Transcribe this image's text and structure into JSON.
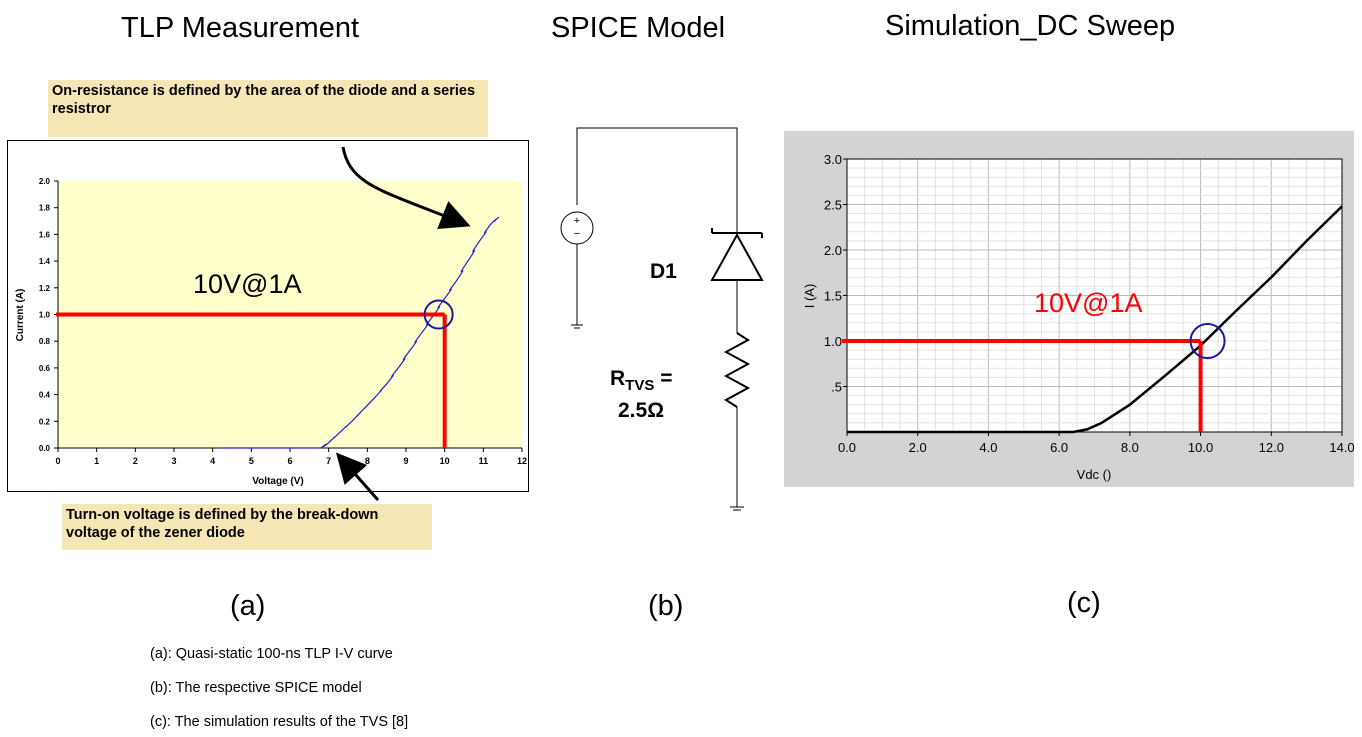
{
  "headings": {
    "tlp": "TLP Measurement",
    "spice": "SPICE Model",
    "sim": "Simulation_DC Sweep"
  },
  "notes": {
    "on_resistance": "On-resistance is defined by the area of the diode and a series resistror",
    "turn_on": "Turn-on voltage is defined by the break-down voltage of the zener diode"
  },
  "panel_labels": {
    "a": "(a)",
    "b": "(b)",
    "c": "(c)"
  },
  "captions": [
    "(a):  Quasi-static 100-ns TLP I-V curve",
    "(b):  The respective SPICE model",
    "(c):  The simulation results of the TVS [8]"
  ],
  "schematic": {
    "diode_label": "D1",
    "resistor_label_main": "R",
    "resistor_label_sub": "TVS",
    "resistor_label_eq": " =",
    "resistor_value": "2.5Ω",
    "source_symbol": "+ −"
  },
  "colors": {
    "note_bg": "#f5e6b6",
    "plot_bg_a": "#ffffcc",
    "curve_a": "#2222cc",
    "marker": "#ff0000",
    "circle": "#1a1a99",
    "panel_bg_c": "#d3d3d3"
  },
  "chart_data": [
    {
      "type": "line",
      "xlabel": "Voltage (V)",
      "ylabel": "Current (A)",
      "xlim": [
        0,
        12
      ],
      "ylim": [
        0,
        2.0
      ],
      "xticks": [
        "0",
        "1",
        "2",
        "3",
        "4",
        "5",
        "6",
        "7",
        "8",
        "9",
        "10",
        "11",
        "12"
      ],
      "yticks": [
        "0.0",
        "0.2",
        "0.4",
        "0.6",
        "0.8",
        "1.0",
        "1.2",
        "1.4",
        "1.6",
        "1.8",
        "2.0"
      ],
      "grid": false,
      "annotation": "10V@1A",
      "marker_point": [
        10,
        1.0
      ],
      "series": [
        {
          "x": [
            4.2,
            6.8,
            7.0,
            7.3,
            7.6,
            7.9,
            8.2,
            8.5,
            8.8,
            9.1,
            9.4,
            9.7,
            10.0,
            10.3,
            10.6,
            10.9,
            11.2,
            11.4
          ],
          "y": [
            0.0,
            0.0,
            0.04,
            0.12,
            0.2,
            0.29,
            0.38,
            0.48,
            0.6,
            0.73,
            0.86,
            0.99,
            1.12,
            1.25,
            1.4,
            1.55,
            1.68,
            1.73
          ]
        }
      ]
    },
    {
      "type": "line",
      "xlabel": "Vdc ()",
      "ylabel": "I (A)",
      "xlim": [
        0,
        14
      ],
      "ylim": [
        0,
        3.0
      ],
      "xticks": [
        "0.0",
        "2.0",
        "4.0",
        "6.0",
        "8.0",
        "10.0",
        "12.0",
        "14.0"
      ],
      "yticks": [
        ".5",
        "1.0",
        "1.5",
        "2.0",
        "2.5",
        "3.0"
      ],
      "grid": true,
      "annotation": "10V@1A",
      "marker_point": [
        10,
        1.0
      ],
      "series": [
        {
          "x": [
            0,
            6.4,
            6.8,
            7.2,
            7.6,
            8.0,
            9.0,
            10.0,
            11.0,
            12.0,
            13.0,
            14.0
          ],
          "y": [
            0.0,
            0.0,
            0.03,
            0.1,
            0.2,
            0.3,
            0.62,
            0.95,
            1.33,
            1.7,
            2.1,
            2.48
          ]
        }
      ]
    }
  ]
}
